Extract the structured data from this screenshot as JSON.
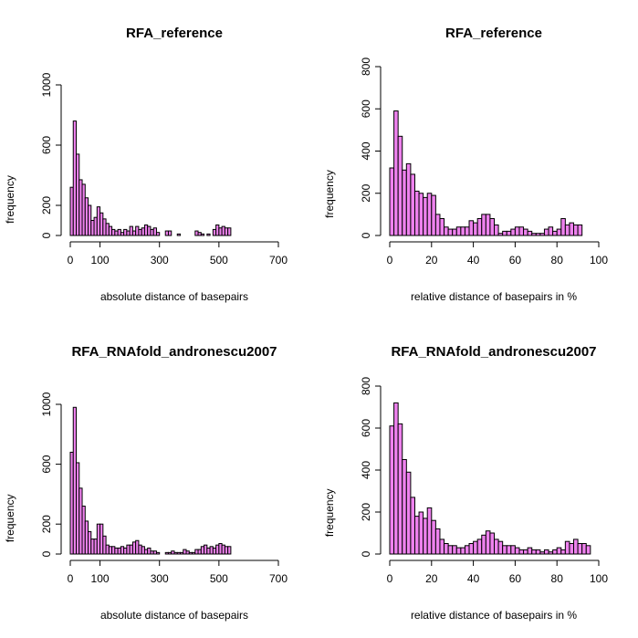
{
  "colors": {
    "bar_fill": "#ee82ee",
    "bar_stroke": "#000000"
  },
  "chart_data": [
    {
      "type": "bar",
      "title": "RFA_reference",
      "xlabel": "absolute distance of basepairs",
      "ylabel": "frequency",
      "bin_start": 0,
      "bin_width": 10,
      "xlim": [
        0,
        700
      ],
      "ylim": [
        0,
        1000
      ],
      "xticks": [
        0,
        100,
        300,
        500,
        700
      ],
      "yticks": [
        0,
        200,
        600,
        1000
      ],
      "values": [
        320,
        760,
        540,
        370,
        340,
        250,
        200,
        100,
        120,
        190,
        150,
        110,
        80,
        60,
        40,
        30,
        40,
        20,
        40,
        30,
        60,
        30,
        60,
        40,
        50,
        70,
        60,
        40,
        50,
        20,
        0,
        0,
        30,
        30,
        0,
        0,
        10,
        0,
        0,
        0,
        0,
        0,
        30,
        20,
        10,
        0,
        10,
        0,
        40,
        70,
        50,
        60,
        50,
        50,
        0
      ]
    },
    {
      "type": "bar",
      "title": "RFA_reference",
      "xlabel": "relative distance of basepairs in %",
      "ylabel": "frequency",
      "bin_start": 0,
      "bin_width": 2,
      "xlim": [
        0,
        100
      ],
      "ylim": [
        0,
        800
      ],
      "xticks": [
        0,
        20,
        40,
        60,
        80,
        100
      ],
      "yticks": [
        0,
        200,
        400,
        600,
        800
      ],
      "values": [
        320,
        590,
        470,
        310,
        340,
        290,
        210,
        200,
        180,
        200,
        190,
        100,
        80,
        40,
        30,
        30,
        40,
        40,
        40,
        70,
        60,
        80,
        100,
        100,
        80,
        50,
        10,
        20,
        20,
        30,
        40,
        40,
        30,
        20,
        10,
        10,
        10,
        30,
        40,
        20,
        30,
        80,
        50,
        60,
        50,
        50
      ]
    },
    {
      "type": "bar",
      "title": "RFA_RNAfold_andronescu2007",
      "xlabel": "absolute distance of basepairs",
      "ylabel": "frequency",
      "bin_start": 0,
      "bin_width": 10,
      "xlim": [
        0,
        700
      ],
      "ylim": [
        0,
        1000
      ],
      "xticks": [
        0,
        100,
        300,
        500,
        700
      ],
      "yticks": [
        0,
        200,
        600,
        1000
      ],
      "values": [
        680,
        980,
        610,
        440,
        320,
        220,
        150,
        100,
        100,
        200,
        200,
        120,
        60,
        50,
        50,
        40,
        40,
        50,
        40,
        60,
        60,
        80,
        90,
        60,
        50,
        30,
        40,
        20,
        20,
        10,
        0,
        0,
        10,
        10,
        20,
        10,
        10,
        10,
        30,
        20,
        10,
        10,
        30,
        30,
        50,
        60,
        40,
        50,
        40,
        60,
        70,
        60,
        50,
        50,
        0
      ]
    },
    {
      "type": "bar",
      "title": "RFA_RNAfold_andronescu2007",
      "xlabel": "relative distance of basepairs in %",
      "ylabel": "frequency",
      "bin_start": 0,
      "bin_width": 2,
      "xlim": [
        0,
        100
      ],
      "ylim": [
        0,
        800
      ],
      "xticks": [
        0,
        20,
        40,
        60,
        80,
        100
      ],
      "yticks": [
        0,
        200,
        400,
        600,
        800
      ],
      "values": [
        610,
        720,
        620,
        450,
        390,
        270,
        180,
        200,
        170,
        220,
        160,
        120,
        70,
        50,
        40,
        40,
        30,
        30,
        40,
        50,
        60,
        70,
        90,
        110,
        100,
        70,
        60,
        40,
        40,
        40,
        30,
        20,
        20,
        30,
        20,
        20,
        10,
        20,
        10,
        20,
        30,
        20,
        60,
        50,
        70,
        50,
        50,
        40
      ]
    }
  ]
}
